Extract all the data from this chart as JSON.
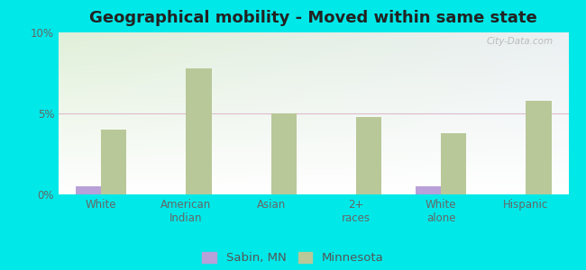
{
  "title": "Geographical mobility - Moved within same state",
  "categories": [
    "White",
    "American\nIndian",
    "Asian",
    "2+\nraces",
    "White\nalone",
    "Hispanic"
  ],
  "sabin_values": [
    0.5,
    0.0,
    0.0,
    0.0,
    0.5,
    0.0
  ],
  "minnesota_values": [
    4.0,
    7.8,
    5.0,
    4.8,
    3.8,
    5.8
  ],
  "sabin_color": "#b8a0d8",
  "minnesota_color": "#b8c898",
  "ylim": [
    0,
    10
  ],
  "yticks": [
    0,
    5,
    10
  ],
  "ytick_labels": [
    "0%",
    "5%",
    "10%"
  ],
  "background_color": "#00e8e8",
  "grid_color": "#ddbbcc",
  "bar_width": 0.3,
  "legend_labels": [
    "Sabin, MN",
    "Minnesota"
  ],
  "watermark": "City-Data.com",
  "title_fontsize": 13,
  "tick_fontsize": 8.5,
  "legend_fontsize": 9.5
}
